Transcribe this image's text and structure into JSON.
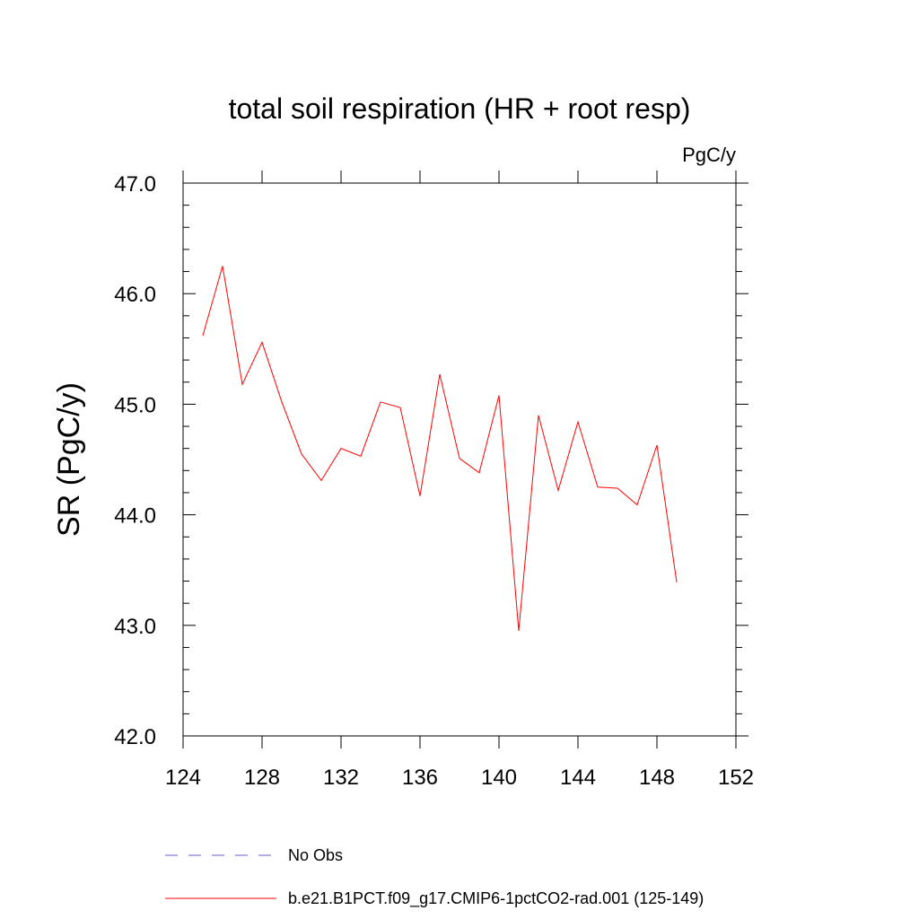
{
  "chart_data": {
    "type": "line",
    "title": "total soil respiration (HR + root resp)",
    "units": "PgC/y",
    "ylabel": "SR  (PgC/y)",
    "xlabel": "",
    "xlim": [
      124,
      152
    ],
    "ylim": [
      42.0,
      47.0
    ],
    "x_ticks": [
      124,
      128,
      132,
      136,
      140,
      144,
      148,
      152
    ],
    "x_tick_labels": [
      "124",
      "128",
      "132",
      "136",
      "140",
      "144",
      "148",
      "152"
    ],
    "y_ticks": [
      42.0,
      43.0,
      44.0,
      45.0,
      46.0,
      47.0
    ],
    "y_tick_labels": [
      "42.0",
      "43.0",
      "44.0",
      "45.0",
      "46.0",
      "47.0"
    ],
    "grid": false,
    "legend_position": "bottom",
    "legend": [
      {
        "label": "No Obs",
        "color": "#6a5acd",
        "style": "dashed"
      },
      {
        "label": "b.e21.B1PCT.f09_g17.CMIP6-1pctCO2-rad.001 (125-149)",
        "color": "#ff0000",
        "style": "solid"
      }
    ],
    "series": [
      {
        "color": "#ff0000",
        "x": [
          125,
          126,
          127,
          128,
          129,
          130,
          131,
          132,
          133,
          134,
          135,
          136,
          137,
          138,
          139,
          140,
          141,
          142,
          143,
          144,
          145,
          146,
          147,
          148,
          149
        ],
        "values": [
          45.62,
          46.25,
          45.18,
          45.56,
          45.02,
          44.55,
          44.31,
          44.6,
          44.53,
          45.02,
          44.97,
          44.17,
          45.27,
          44.51,
          44.38,
          45.08,
          42.95,
          44.9,
          44.22,
          44.84,
          44.25,
          44.24,
          44.09,
          44.63,
          43.39
        ]
      }
    ]
  }
}
